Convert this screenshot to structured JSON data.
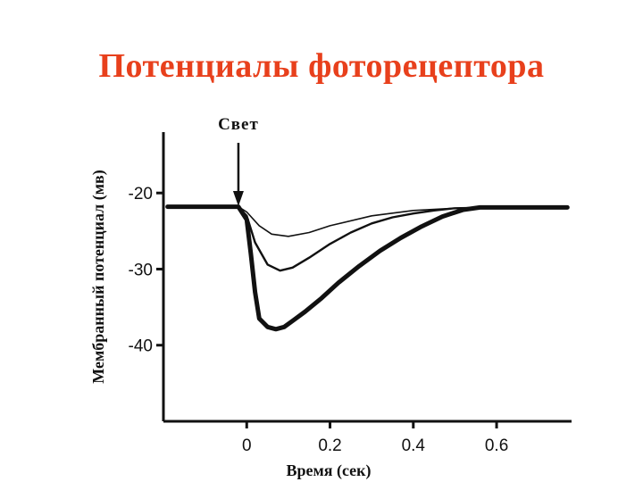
{
  "slide": {
    "title": "Потенциалы фоторецептора",
    "title_color": "#e8401c"
  },
  "chart_data": {
    "type": "line",
    "title": "",
    "xlabel": "Время (сек)",
    "ylabel": "Мембранный потенциал (мв)",
    "xlim": [
      -0.2,
      0.78
    ],
    "ylim": [
      -50,
      -12
    ],
    "x_ticks": [
      0,
      0.2,
      0.4,
      0.6
    ],
    "x_tick_labels": [
      "0",
      "0.2",
      "0.4",
      "0.6"
    ],
    "y_ticks": [
      -20,
      -30,
      -40
    ],
    "y_tick_labels": [
      "-20",
      "-30",
      "-40"
    ],
    "grid": false,
    "annotation": {
      "text": "Свет",
      "x": -0.02
    },
    "series": [
      {
        "stroke": "thin",
        "x": [
          -0.19,
          -0.02,
          0.0,
          0.03,
          0.06,
          0.1,
          0.15,
          0.2,
          0.3,
          0.4,
          0.5,
          0.6,
          0.77
        ],
        "y": [
          -21.8,
          -21.8,
          -22.5,
          -24.3,
          -25.4,
          -25.7,
          -25.2,
          -24.3,
          -23.0,
          -22.3,
          -22.0,
          -21.9,
          -21.9
        ]
      },
      {
        "stroke": "medium",
        "x": [
          -0.19,
          -0.02,
          0.0,
          0.02,
          0.05,
          0.08,
          0.11,
          0.15,
          0.2,
          0.25,
          0.3,
          0.35,
          0.4,
          0.45,
          0.5,
          0.6,
          0.77
        ],
        "y": [
          -21.8,
          -21.8,
          -23.0,
          -26.5,
          -29.4,
          -30.2,
          -29.8,
          -28.5,
          -26.7,
          -25.2,
          -24.0,
          -23.2,
          -22.7,
          -22.3,
          -22.0,
          -21.9,
          -21.9
        ]
      },
      {
        "stroke": "thick",
        "x": [
          -0.19,
          -0.02,
          0.0,
          0.01,
          0.02,
          0.03,
          0.05,
          0.07,
          0.09,
          0.11,
          0.14,
          0.18,
          0.22,
          0.27,
          0.32,
          0.37,
          0.42,
          0.47,
          0.52,
          0.56,
          0.6,
          0.77
        ],
        "y": [
          -21.8,
          -21.8,
          -23.5,
          -28.0,
          -33.0,
          -36.5,
          -37.6,
          -37.9,
          -37.6,
          -36.8,
          -35.6,
          -33.8,
          -31.8,
          -29.6,
          -27.6,
          -25.9,
          -24.4,
          -23.1,
          -22.2,
          -21.9,
          -21.9,
          -21.9
        ]
      }
    ]
  }
}
